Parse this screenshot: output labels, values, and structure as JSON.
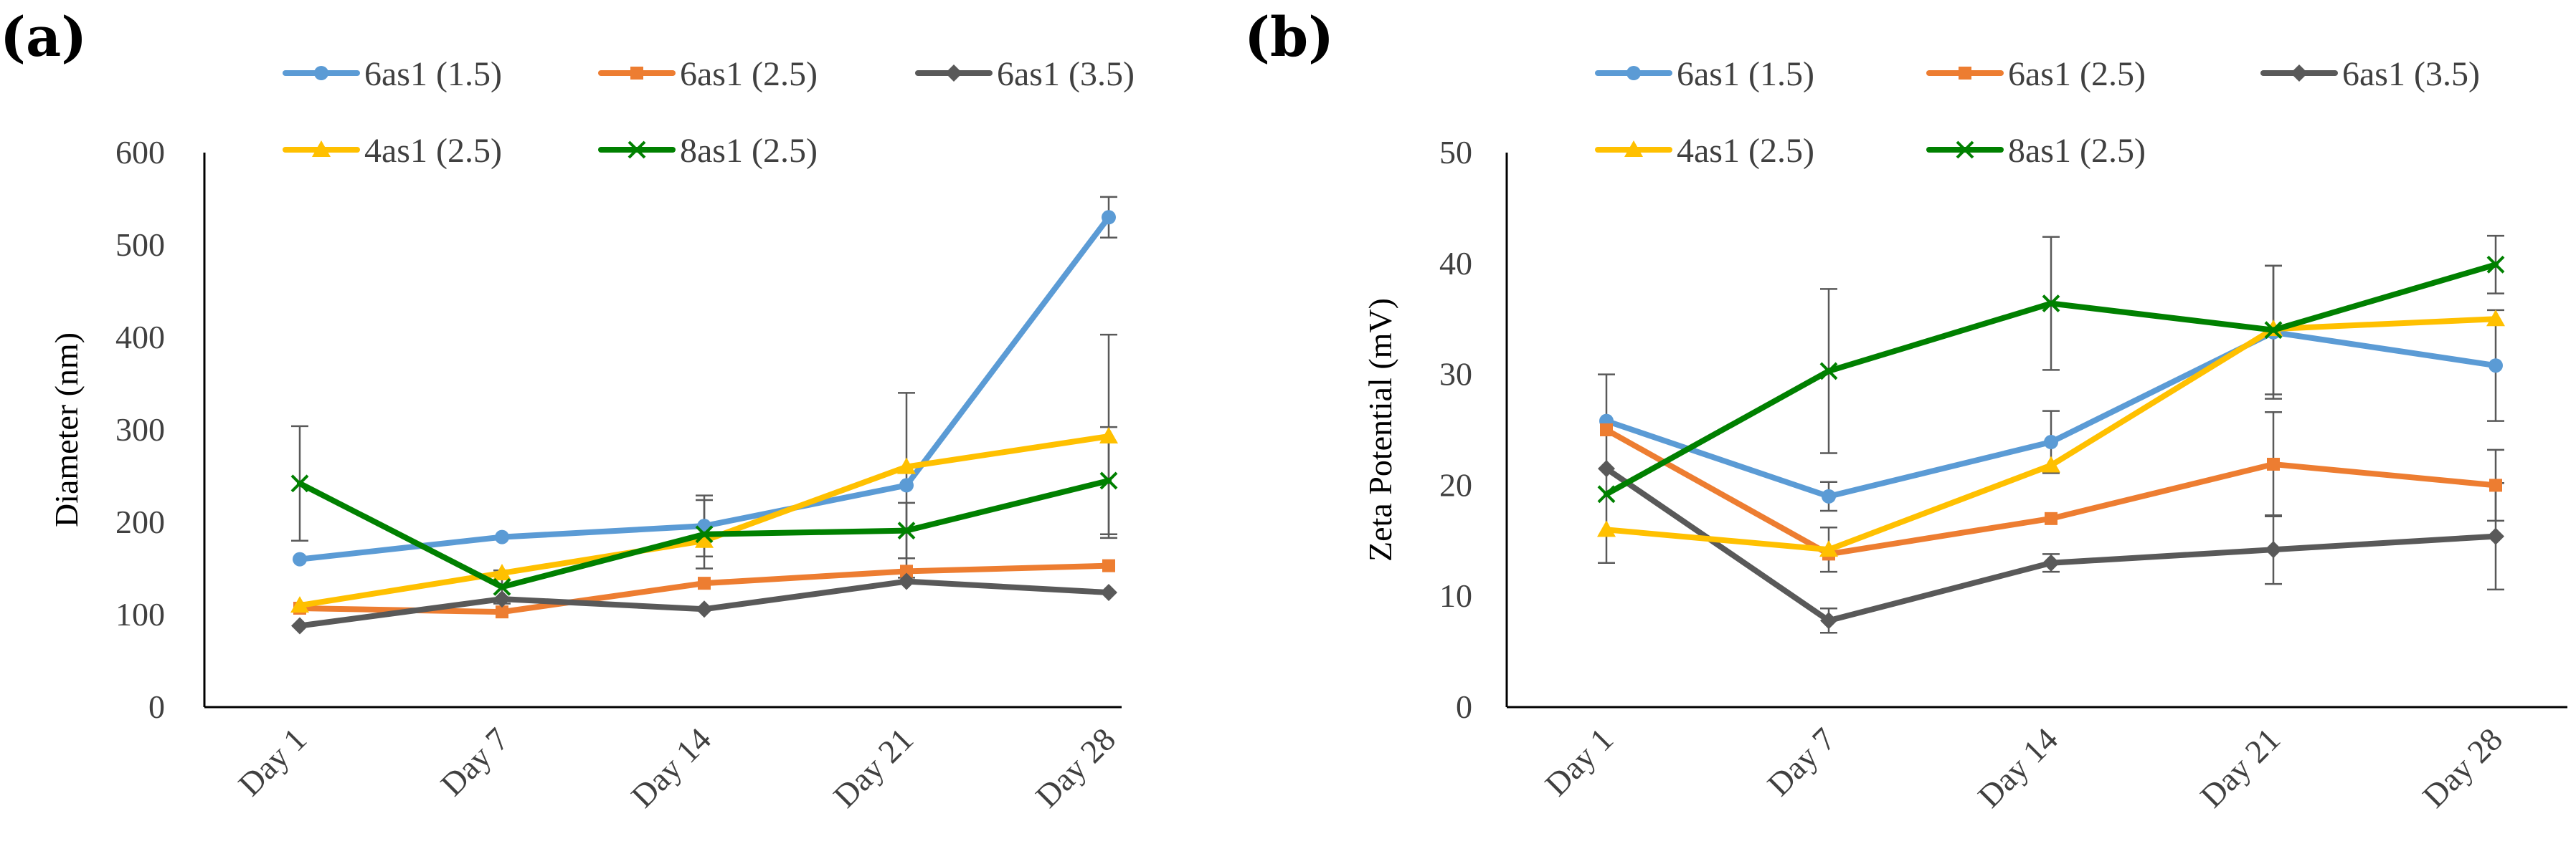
{
  "chart_data": [
    {
      "type": "line",
      "panel_label": "(a)",
      "title": "",
      "xlabel": "",
      "ylabel": "Diameter (nm)",
      "categories": [
        "Day 1",
        "Day 7",
        "Day 14",
        "Day 21",
        "Day 28"
      ],
      "ylim": [
        0,
        600
      ],
      "yticks": [
        0,
        100,
        200,
        300,
        400,
        500,
        600
      ],
      "grid": false,
      "legend": "top",
      "series": [
        {
          "name": "6as1 (1.5)",
          "color": "#5B9BD5",
          "marker": "circle",
          "values": [
            160,
            184,
            196,
            240,
            530
          ],
          "errors": [
            null,
            null,
            33,
            100,
            22
          ]
        },
        {
          "name": "6as1 (2.5)",
          "color": "#ED7D31",
          "marker": "square",
          "values": [
            107,
            103,
            134,
            147,
            153
          ],
          "errors": [
            null,
            null,
            null,
            null,
            null
          ]
        },
        {
          "name": "6as1 (3.5)",
          "color": "#595959",
          "marker": "diamond",
          "values": [
            88,
            117,
            106,
            136,
            124
          ],
          "errors": [
            null,
            null,
            null,
            null,
            null
          ]
        },
        {
          "name": "4as1 (2.5)",
          "color": "#FFC000",
          "marker": "triangle",
          "values": [
            110,
            145,
            180,
            260,
            293
          ],
          "errors": [
            null,
            null,
            null,
            null,
            110
          ]
        },
        {
          "name": "8as1 (2.5)",
          "color": "#008000",
          "marker": "x",
          "values": [
            242,
            130,
            187,
            191,
            245
          ],
          "errors": [
            62,
            18,
            37,
            30,
            58
          ]
        }
      ]
    },
    {
      "type": "line",
      "panel_label": "(b)",
      "title": "",
      "xlabel": "",
      "ylabel": "Zeta Potential (mV)",
      "categories": [
        "Day 1",
        "Day 7",
        "Day 14",
        "Day 21",
        "Day 28"
      ],
      "ylim": [
        0,
        50
      ],
      "yticks": [
        0,
        10,
        20,
        30,
        40,
        50
      ],
      "grid": false,
      "legend": "top",
      "series": [
        {
          "name": "6as1 (1.5)",
          "color": "#5B9BD5",
          "marker": "circle",
          "values": [
            25.8,
            19,
            23.9,
            33.8,
            30.8
          ],
          "errors": [
            null,
            1.3,
            2.8,
            6.0,
            5.0
          ]
        },
        {
          "name": "6as1 (2.5)",
          "color": "#ED7D31",
          "marker": "square",
          "values": [
            25,
            13.8,
            17,
            21.9,
            20
          ],
          "errors": [
            null,
            null,
            null,
            4.7,
            3.2
          ]
        },
        {
          "name": "6as1 (3.5)",
          "color": "#595959",
          "marker": "diamond",
          "values": [
            21.5,
            7.8,
            13,
            14.2,
            15.4
          ],
          "errors": [
            8.5,
            1.1,
            0.8,
            3.1,
            4.8
          ]
        },
        {
          "name": "4as1 (2.5)",
          "color": "#FFC000",
          "marker": "triangle",
          "values": [
            16,
            14.2,
            21.8,
            34.1,
            35
          ],
          "errors": [
            null,
            2.0,
            null,
            null,
            null
          ]
        },
        {
          "name": "8as1 (2.5)",
          "color": "#008000",
          "marker": "x",
          "values": [
            19.2,
            30.3,
            36.4,
            34,
            39.9
          ],
          "errors": [
            null,
            7.4,
            6.0,
            5.8,
            2.6
          ]
        }
      ]
    }
  ]
}
